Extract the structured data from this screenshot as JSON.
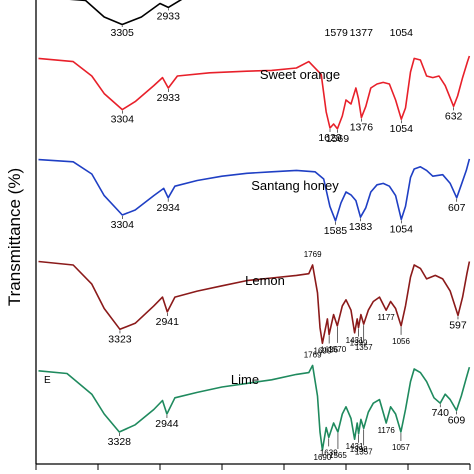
{
  "chart_data": {
    "type": "line",
    "title": "",
    "ylabel": "Transmittance (%)",
    "xlabel": "",
    "panel_letter": "E",
    "x_range": [
      4000,
      500
    ],
    "series": [
      {
        "name": "",
        "color": "#000000",
        "points": [
          [
            3900,
            0.95
          ],
          [
            3600,
            0.85
          ],
          [
            3450,
            0.3
          ],
          [
            3305,
            0.05
          ],
          [
            3150,
            0.3
          ],
          [
            3000,
            0.75
          ],
          [
            2933,
            0.62
          ],
          [
            2800,
            0.95
          ]
        ],
        "peaks": [
          {
            "x": 3305,
            "label": "3305"
          },
          {
            "x": 2933,
            "label": "2933"
          },
          {
            "x": 1579,
            "label": "1579"
          },
          {
            "x": 1377,
            "label": "1377"
          },
          {
            "x": 1054,
            "label": "1054"
          }
        ]
      },
      {
        "name": "Sweet orange",
        "color": "#e8202a",
        "points": [
          [
            3980,
            0.92
          ],
          [
            3700,
            0.88
          ],
          [
            3550,
            0.7
          ],
          [
            3450,
            0.48
          ],
          [
            3304,
            0.28
          ],
          [
            3200,
            0.38
          ],
          [
            3050,
            0.58
          ],
          [
            2980,
            0.68
          ],
          [
            2933,
            0.55
          ],
          [
            2860,
            0.7
          ],
          [
            2600,
            0.74
          ],
          [
            2300,
            0.76
          ],
          [
            2100,
            0.77
          ],
          [
            1900,
            0.8
          ],
          [
            1800,
            0.88
          ],
          [
            1700,
            0.72
          ],
          [
            1660,
            0.25
          ],
          [
            1629,
            0.05
          ],
          [
            1600,
            0.1
          ],
          [
            1569,
            0.04
          ],
          [
            1530,
            0.2
          ],
          [
            1500,
            0.4
          ],
          [
            1460,
            0.35
          ],
          [
            1420,
            0.55
          ],
          [
            1400,
            0.42
          ],
          [
            1376,
            0.18
          ],
          [
            1340,
            0.32
          ],
          [
            1300,
            0.55
          ],
          [
            1250,
            0.6
          ],
          [
            1200,
            0.62
          ],
          [
            1150,
            0.6
          ],
          [
            1100,
            0.4
          ],
          [
            1054,
            0.16
          ],
          [
            1020,
            0.3
          ],
          [
            980,
            0.75
          ],
          [
            950,
            0.92
          ],
          [
            900,
            0.9
          ],
          [
            850,
            0.7
          ],
          [
            800,
            0.68
          ],
          [
            750,
            0.7
          ],
          [
            700,
            0.58
          ],
          [
            632,
            0.32
          ],
          [
            600,
            0.45
          ],
          [
            560,
            0.68
          ],
          [
            520,
            0.88
          ],
          [
            505,
            0.95
          ]
        ],
        "peaks": [
          {
            "x": 3304,
            "label": "3304"
          },
          {
            "x": 2933,
            "label": "2933"
          },
          {
            "x": 1629,
            "label": "1629"
          },
          {
            "x": 1569,
            "label": "1569"
          },
          {
            "x": 1376,
            "label": "1376"
          },
          {
            "x": 1054,
            "label": "1054"
          },
          {
            "x": 632,
            "label": "632"
          }
        ]
      },
      {
        "name": "Santang honey",
        "color": "#1f3fc4",
        "points": [
          [
            3980,
            0.95
          ],
          [
            3700,
            0.92
          ],
          [
            3550,
            0.75
          ],
          [
            3450,
            0.45
          ],
          [
            3304,
            0.18
          ],
          [
            3200,
            0.25
          ],
          [
            3050,
            0.45
          ],
          [
            2970,
            0.55
          ],
          [
            2934,
            0.42
          ],
          [
            2880,
            0.58
          ],
          [
            2700,
            0.66
          ],
          [
            2500,
            0.72
          ],
          [
            2300,
            0.76
          ],
          [
            2100,
            0.78
          ],
          [
            1900,
            0.8
          ],
          [
            1750,
            0.78
          ],
          [
            1680,
            0.68
          ],
          [
            1630,
            0.3
          ],
          [
            1585,
            0.1
          ],
          [
            1540,
            0.35
          ],
          [
            1500,
            0.5
          ],
          [
            1460,
            0.46
          ],
          [
            1420,
            0.38
          ],
          [
            1383,
            0.15
          ],
          [
            1340,
            0.28
          ],
          [
            1300,
            0.5
          ],
          [
            1250,
            0.6
          ],
          [
            1200,
            0.62
          ],
          [
            1150,
            0.58
          ],
          [
            1100,
            0.45
          ],
          [
            1054,
            0.12
          ],
          [
            1020,
            0.3
          ],
          [
            980,
            0.7
          ],
          [
            950,
            0.82
          ],
          [
            900,
            0.85
          ],
          [
            850,
            0.8
          ],
          [
            800,
            0.72
          ],
          [
            720,
            0.74
          ],
          [
            660,
            0.62
          ],
          [
            607,
            0.42
          ],
          [
            570,
            0.6
          ],
          [
            530,
            0.8
          ],
          [
            505,
            0.96
          ]
        ],
        "peaks": [
          {
            "x": 3304,
            "label": "3304"
          },
          {
            "x": 2934,
            "label": "2934"
          },
          {
            "x": 1585,
            "label": "1585"
          },
          {
            "x": 1383,
            "label": "1383"
          },
          {
            "x": 1054,
            "label": "1054"
          },
          {
            "x": 607,
            "label": "607"
          }
        ]
      },
      {
        "name": "Lemon",
        "color": "#8b1a1a",
        "points": [
          [
            3980,
            0.96
          ],
          [
            3700,
            0.92
          ],
          [
            3550,
            0.7
          ],
          [
            3450,
            0.42
          ],
          [
            3323,
            0.18
          ],
          [
            3200,
            0.25
          ],
          [
            3050,
            0.45
          ],
          [
            2980,
            0.55
          ],
          [
            2941,
            0.38
          ],
          [
            2880,
            0.55
          ],
          [
            2700,
            0.62
          ],
          [
            2500,
            0.68
          ],
          [
            2300,
            0.74
          ],
          [
            2100,
            0.77
          ],
          [
            1900,
            0.8
          ],
          [
            1800,
            0.82
          ],
          [
            1769,
            0.92
          ],
          [
            1730,
            0.6
          ],
          [
            1710,
            0.2
          ],
          [
            1690,
            0.02
          ],
          [
            1650,
            0.3
          ],
          [
            1636,
            0.12
          ],
          [
            1600,
            0.35
          ],
          [
            1570,
            0.22
          ],
          [
            1530,
            0.45
          ],
          [
            1500,
            0.52
          ],
          [
            1460,
            0.4
          ],
          [
            1431,
            0.14
          ],
          [
            1410,
            0.3
          ],
          [
            1399,
            0.2
          ],
          [
            1380,
            0.35
          ],
          [
            1357,
            0.24
          ],
          [
            1320,
            0.4
          ],
          [
            1280,
            0.5
          ],
          [
            1230,
            0.55
          ],
          [
            1177,
            0.4
          ],
          [
            1140,
            0.5
          ],
          [
            1100,
            0.42
          ],
          [
            1056,
            0.22
          ],
          [
            1020,
            0.45
          ],
          [
            980,
            0.78
          ],
          [
            950,
            0.92
          ],
          [
            900,
            0.88
          ],
          [
            850,
            0.76
          ],
          [
            780,
            0.8
          ],
          [
            720,
            0.76
          ],
          [
            660,
            0.62
          ],
          [
            597,
            0.34
          ],
          [
            560,
            0.55
          ],
          [
            525,
            0.82
          ],
          [
            505,
            0.96
          ]
        ],
        "peaks": [
          {
            "x": 3323,
            "label": "3323"
          },
          {
            "x": 2941,
            "label": "2941"
          },
          {
            "x": 1769,
            "label": "1769"
          },
          {
            "x": 1690,
            "label": "1690"
          },
          {
            "x": 1636,
            "label": "1636"
          },
          {
            "x": 1570,
            "label": "1570"
          },
          {
            "x": 1431,
            "label": "1431"
          },
          {
            "x": 1399,
            "label": "1399"
          },
          {
            "x": 1357,
            "label": "1357"
          },
          {
            "x": 1177,
            "label": "1177"
          },
          {
            "x": 1056,
            "label": "1056"
          },
          {
            "x": 597,
            "label": "597"
          }
        ]
      },
      {
        "name": "Lime",
        "color": "#1f8a5e",
        "points": [
          [
            3980,
            0.88
          ],
          [
            3750,
            0.85
          ],
          [
            3550,
            0.62
          ],
          [
            3450,
            0.4
          ],
          [
            3328,
            0.2
          ],
          [
            3200,
            0.28
          ],
          [
            3050,
            0.45
          ],
          [
            2980,
            0.55
          ],
          [
            2944,
            0.4
          ],
          [
            2880,
            0.58
          ],
          [
            2700,
            0.64
          ],
          [
            2500,
            0.7
          ],
          [
            2300,
            0.74
          ],
          [
            2100,
            0.78
          ],
          [
            1900,
            0.84
          ],
          [
            1800,
            0.86
          ],
          [
            1769,
            0.94
          ],
          [
            1730,
            0.6
          ],
          [
            1710,
            0.2
          ],
          [
            1690,
            0.0
          ],
          [
            1660,
            0.25
          ],
          [
            1639,
            0.14
          ],
          [
            1600,
            0.3
          ],
          [
            1565,
            0.2
          ],
          [
            1530,
            0.4
          ],
          [
            1500,
            0.48
          ],
          [
            1460,
            0.35
          ],
          [
            1431,
            0.12
          ],
          [
            1410,
            0.3
          ],
          [
            1398,
            0.18
          ],
          [
            1380,
            0.34
          ],
          [
            1357,
            0.24
          ],
          [
            1320,
            0.42
          ],
          [
            1280,
            0.52
          ],
          [
            1230,
            0.56
          ],
          [
            1176,
            0.3
          ],
          [
            1140,
            0.48
          ],
          [
            1100,
            0.4
          ],
          [
            1057,
            0.2
          ],
          [
            1020,
            0.45
          ],
          [
            980,
            0.76
          ],
          [
            950,
            0.9
          ],
          [
            900,
            0.86
          ],
          [
            850,
            0.76
          ],
          [
            790,
            0.58
          ],
          [
            740,
            0.52
          ],
          [
            700,
            0.62
          ],
          [
            660,
            0.56
          ],
          [
            609,
            0.44
          ],
          [
            570,
            0.6
          ],
          [
            530,
            0.8
          ],
          [
            505,
            0.92
          ]
        ],
        "peaks": [
          {
            "x": 3328,
            "label": "3328"
          },
          {
            "x": 2944,
            "label": "2944"
          },
          {
            "x": 1769,
            "label": "1769"
          },
          {
            "x": 1690,
            "label": "1690"
          },
          {
            "x": 1639,
            "label": "1639"
          },
          {
            "x": 1565,
            "label": "1565"
          },
          {
            "x": 1431,
            "label": "1431"
          },
          {
            "x": 1398,
            "label": "1398"
          },
          {
            "x": 1357,
            "label": "1357"
          },
          {
            "x": 1176,
            "label": "1176"
          },
          {
            "x": 1057,
            "label": "1057"
          },
          {
            "x": 740,
            "label": "740"
          },
          {
            "x": 609,
            "label": "609"
          }
        ]
      }
    ]
  }
}
